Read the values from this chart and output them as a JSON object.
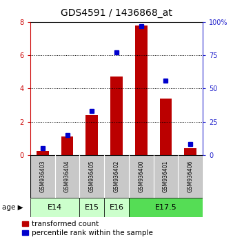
{
  "title": "GDS4591 / 1436868_at",
  "samples": [
    "GSM936403",
    "GSM936404",
    "GSM936405",
    "GSM936402",
    "GSM936400",
    "GSM936401",
    "GSM936406"
  ],
  "red_values": [
    0.22,
    1.12,
    2.38,
    4.72,
    7.8,
    3.38,
    0.42
  ],
  "blue_values": [
    5.0,
    15.0,
    33.0,
    77.0,
    97.0,
    56.0,
    8.0
  ],
  "age_groups": [
    {
      "label": "E14",
      "start": 0,
      "end": 1,
      "color": "#ccffcc"
    },
    {
      "label": "E15",
      "start": 2,
      "end": 2,
      "color": "#ccffcc"
    },
    {
      "label": "E16",
      "start": 3,
      "end": 3,
      "color": "#ccffcc"
    },
    {
      "label": "E17.5",
      "start": 4,
      "end": 6,
      "color": "#55dd55"
    }
  ],
  "ylim_left": [
    0,
    8
  ],
  "ylim_right": [
    0,
    100
  ],
  "yticks_left": [
    0,
    2,
    4,
    6,
    8
  ],
  "yticks_right": [
    0,
    25,
    50,
    75,
    100
  ],
  "ytick_right_labels": [
    "0",
    "25",
    "50",
    "75",
    "100%"
  ],
  "red_color": "#bb0000",
  "blue_color": "#0000cc",
  "bar_bg_color": "#c8c8c8",
  "age_e14_e16_color": "#ccffcc",
  "age_e175_color": "#55dd55",
  "left_tick_color": "#cc0000",
  "right_tick_color": "#2222cc",
  "title_fontsize": 10,
  "tick_fontsize": 7,
  "sample_fontsize": 5.5,
  "age_fontsize": 8,
  "legend_fontsize": 7.5,
  "bar_width": 0.5,
  "marker_size": 4
}
